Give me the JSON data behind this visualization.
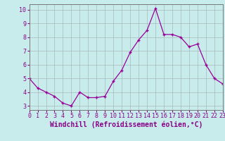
{
  "x": [
    0,
    1,
    2,
    3,
    4,
    5,
    6,
    7,
    8,
    9,
    10,
    11,
    12,
    13,
    14,
    15,
    16,
    17,
    18,
    19,
    20,
    21,
    22,
    23
  ],
  "y": [
    5.0,
    4.3,
    4.0,
    3.7,
    3.2,
    3.0,
    4.0,
    3.6,
    3.6,
    3.7,
    4.8,
    5.6,
    6.9,
    7.8,
    8.5,
    10.1,
    8.2,
    8.2,
    8.0,
    7.3,
    7.5,
    6.0,
    5.0,
    4.6
  ],
  "line_color": "#990099",
  "marker": "+",
  "bg_color": "#c8ecec",
  "grid_color": "#aabbbb",
  "xlabel": "Windchill (Refroidissement éolien,°C)",
  "xlim": [
    0,
    23
  ],
  "ylim": [
    2.7,
    10.4
  ],
  "yticks": [
    3,
    4,
    5,
    6,
    7,
    8,
    9,
    10
  ],
  "xtick_labels": [
    "0",
    "1",
    "2",
    "3",
    "4",
    "5",
    "6",
    "7",
    "8",
    "9",
    "10",
    "11",
    "12",
    "13",
    "14",
    "15",
    "16",
    "17",
    "18",
    "19",
    "20",
    "21",
    "22",
    "23"
  ],
  "xlabel_fontsize": 7,
  "tick_fontsize": 6
}
